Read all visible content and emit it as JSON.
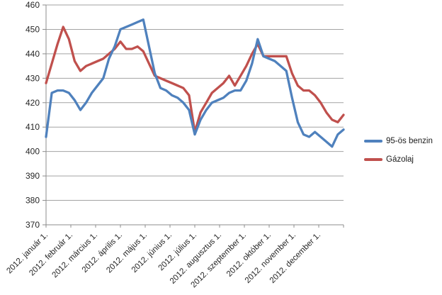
{
  "chart_data": {
    "type": "line",
    "title": "",
    "xlabel": "",
    "ylabel": "",
    "grid": true,
    "background": "#ffffff",
    "legend_position": "right",
    "y_axis": {
      "min": 370,
      "max": 460,
      "step": 10,
      "ticks": [
        370,
        380,
        390,
        400,
        410,
        420,
        430,
        440,
        450,
        460
      ]
    },
    "x_axis": {
      "tick_labels": [
        "2012. január 1.",
        "2012. február 1.",
        "2012. március 1.",
        "2012. április 1.",
        "2012. május 1.",
        "2012. június 1.",
        "2012. július 1.",
        "2012. augusztus 1.",
        "2012. szeptember 1.",
        "2012. október 1.",
        "2012. november 1.",
        "2012. december 1."
      ],
      "points_frequency": "weekly",
      "num_points": 53
    },
    "series": [
      {
        "name": "95-ös benzin",
        "color": "#4F81BD",
        "values": [
          406,
          424,
          425,
          425,
          424,
          421,
          417,
          420,
          424,
          427,
          430,
          438,
          443,
          450,
          451,
          452,
          453,
          454,
          443,
          432,
          426,
          425,
          423,
          422,
          420,
          417,
          407,
          413,
          417,
          420,
          421,
          422,
          424,
          425,
          425,
          429,
          436,
          446,
          439,
          438,
          437,
          435,
          433,
          422,
          412,
          407,
          406,
          408,
          406,
          404,
          402,
          407,
          409
        ]
      },
      {
        "name": "Gázolaj",
        "color": "#C0504D",
        "values": [
          428,
          436,
          444,
          451,
          446,
          437,
          433,
          435,
          436,
          437,
          438,
          440,
          442,
          445,
          442,
          442,
          443,
          441,
          436,
          431,
          430,
          429,
          428,
          427,
          426,
          423,
          408,
          416,
          420,
          424,
          426,
          428,
          431,
          427,
          431,
          435,
          440,
          444,
          439,
          439,
          439,
          439,
          439,
          432,
          427,
          425,
          425,
          423,
          420,
          416,
          413,
          412,
          415
        ]
      }
    ],
    "style": {
      "grid_color": "#A3A3A3",
      "axis_color": "#8C8C8C",
      "text_color": "#262626",
      "line_width": 3.3
    }
  }
}
